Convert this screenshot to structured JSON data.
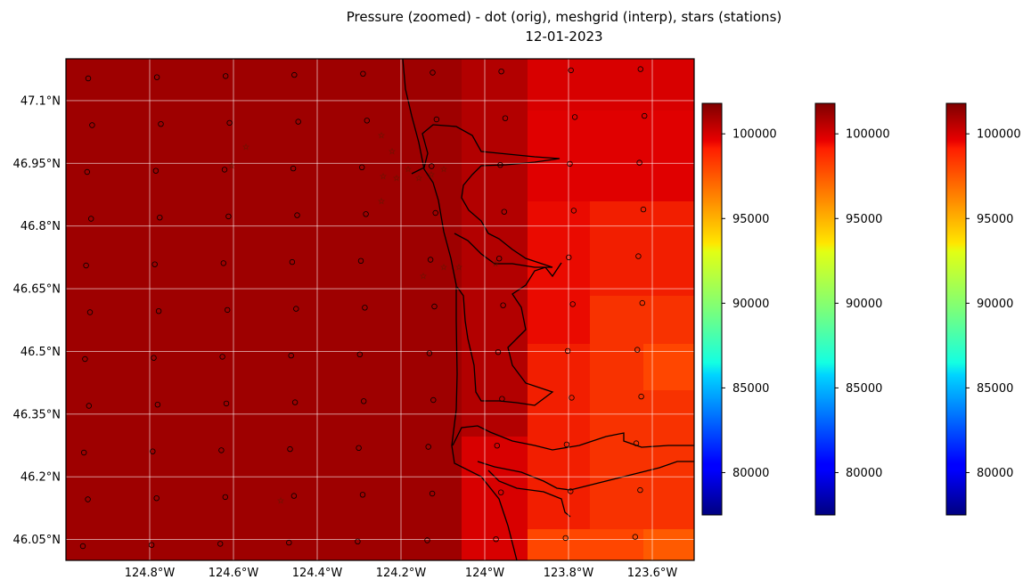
{
  "title": {
    "line1": "Pressure (zoomed) - dot (orig), meshgrid (interp), stars (stations)",
    "line2": "12-01-2023"
  },
  "map": {
    "lon_range": [
      -125.0,
      -123.5
    ],
    "lat_range": [
      46.0,
      47.2
    ],
    "lat_ticks": [
      {
        "value": 47.1,
        "label": "47.1°N"
      },
      {
        "value": 46.95,
        "label": "46.95°N"
      },
      {
        "value": 46.8,
        "label": "46.8°N"
      },
      {
        "value": 46.65,
        "label": "46.65°N"
      },
      {
        "value": 46.5,
        "label": "46.5°N"
      },
      {
        "value": 46.35,
        "label": "46.35°N"
      },
      {
        "value": 46.2,
        "label": "46.2°N"
      },
      {
        "value": 46.05,
        "label": "46.05°N"
      }
    ],
    "lon_ticks": [
      {
        "value": -124.8,
        "label": "124.8°W"
      },
      {
        "value": -124.6,
        "label": "124.6°W"
      },
      {
        "value": -124.4,
        "label": "124.4°W"
      },
      {
        "value": -124.2,
        "label": "124.2°W"
      },
      {
        "value": -124.0,
        "label": "124°W"
      },
      {
        "value": -123.8,
        "label": "123.8°W"
      },
      {
        "value": -123.6,
        "label": "123.6°W"
      }
    ],
    "grid": true,
    "colormap": "jet",
    "meshgrid_colors": {
      "deep": "#9e0000",
      "dark": "#b20000",
      "red1": "#d80000",
      "red2": "#e00000",
      "red3": "#ea0a00",
      "red4": "#f21e00",
      "orange1": "#f83200",
      "orange2": "#ff4600",
      "orange3": "#ff5a00"
    }
  },
  "colorbars": [
    {
      "label_ticks": [
        "100000",
        "95000",
        "90000",
        "85000",
        "80000"
      ],
      "tick_values": [
        100000,
        95000,
        90000,
        85000,
        80000
      ],
      "range": [
        77500,
        101800
      ]
    },
    {
      "label_ticks": [
        "100000",
        "95000",
        "90000",
        "85000",
        "80000"
      ],
      "tick_values": [
        100000,
        95000,
        90000,
        85000,
        80000
      ],
      "range": [
        77500,
        101800
      ]
    },
    {
      "label_ticks": [
        "100000",
        "95000",
        "90000",
        "85000",
        "80000"
      ],
      "tick_values": [
        100000,
        95000,
        90000,
        85000,
        80000
      ],
      "range": [
        77500,
        101800
      ]
    }
  ]
}
